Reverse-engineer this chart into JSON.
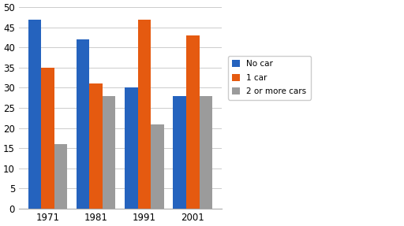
{
  "years": [
    "1971",
    "1981",
    "1991",
    "2001"
  ],
  "no_car": [
    47,
    42,
    30,
    28
  ],
  "one_car": [
    35,
    31,
    47,
    43
  ],
  "two_plus_cars": [
    16,
    28,
    21,
    28
  ],
  "colors": {
    "no_car": "#2563BE",
    "one_car": "#E55A10",
    "two_plus_cars": "#9B9B9B"
  },
  "legend_labels": [
    "No car",
    "1 car",
    "2 or more cars"
  ],
  "ylim": [
    0,
    50
  ],
  "yticks": [
    0,
    5,
    10,
    15,
    20,
    25,
    30,
    35,
    40,
    45,
    50
  ],
  "bar_width": 0.27,
  "figure_width": 5.12,
  "figure_height": 2.87,
  "dpi": 100
}
